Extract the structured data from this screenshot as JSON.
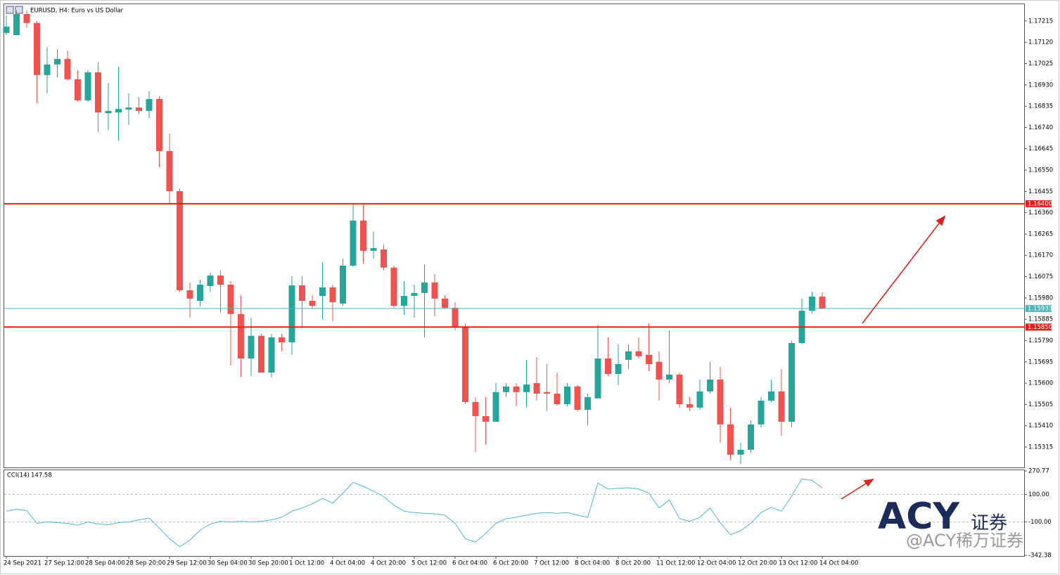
{
  "chart_data": [
    {
      "type": "candlestick",
      "title": "EURUSD, H4:  Euro vs US Dollar",
      "categories": [
        "24 Sep 2021",
        null,
        null,
        null,
        "27 Sep 12:00",
        null,
        null,
        null,
        "28 Sep 04:00",
        null,
        null,
        null,
        "28 Sep 20:00",
        null,
        null,
        null,
        "29 Sep 12:00",
        null,
        null,
        null,
        "30 Sep 04:00",
        null,
        null,
        null,
        "30 Sep 20:00",
        null,
        null,
        null,
        "1 Oct 12:00",
        null,
        null,
        null,
        "4 Oct 04:00",
        null,
        null,
        null,
        "4 Oct 20:00",
        null,
        null,
        null,
        "5 Oct 12:00",
        null,
        null,
        null,
        "6 Oct 04:00",
        null,
        null,
        null,
        "6 Oct 20:00",
        null,
        null,
        null,
        "7 Oct 12:00",
        null,
        null,
        null,
        "8 Oct 04:00",
        null,
        null,
        null,
        "8 Oct 20:00",
        null,
        null,
        null,
        "11 Oct 12:00",
        null,
        null,
        null,
        "12 Oct 04:00",
        null,
        null,
        null,
        "12 Oct 20:00",
        null,
        null,
        null,
        "13 Oct 12:00",
        null,
        null,
        null,
        "14 Oct 04:00"
      ],
      "open": [
        1.17162,
        1.17152,
        1.17246,
        1.17206,
        1.16974,
        1.17021,
        1.17046,
        1.16955,
        1.16861,
        1.16986,
        1.16804,
        1.16807,
        1.1682,
        1.16829,
        1.16814,
        1.16867,
        1.16635,
        1.16456,
        1.16014,
        1.15967,
        1.16033,
        1.1608,
        1.16039,
        1.15908,
        1.1571,
        1.15811,
        1.15647,
        1.15804,
        1.15782,
        1.16036,
        1.15967,
        1.15989,
        1.16027,
        1.15955,
        1.16124,
        1.16325,
        1.1619,
        1.16196,
        1.16115,
        1.15945,
        1.15989,
        1.16002,
        1.16049,
        1.15977,
        1.15936,
        1.15851,
        1.15516,
        1.15453,
        1.15428,
        1.1556,
        1.15585,
        1.1556,
        1.156,
        1.1556,
        1.15553,
        1.15506,
        1.15585,
        1.15481,
        1.15532,
        1.1571,
        1.15641,
        1.15704,
        1.15742,
        1.15726,
        1.15695,
        1.15616,
        1.15638,
        1.15506,
        1.15491,
        1.15563,
        1.15616,
        1.15416,
        1.15281,
        1.15303,
        1.15416,
        1.15522,
        1.15563,
        1.15428,
        1.15779,
        1.15923,
        1.15986
      ],
      "high": [
        1.1724,
        1.17262,
        1.17262,
        1.17215,
        1.17099,
        1.1709,
        1.17083,
        1.16996,
        1.16996,
        1.17033,
        1.16939,
        1.17011,
        1.16892,
        1.16876,
        1.16902,
        1.1688,
        1.16713,
        1.16469,
        1.16049,
        1.16061,
        1.16093,
        1.16102,
        1.16055,
        1.15992,
        1.15892,
        1.1582,
        1.1582,
        1.1582,
        1.16077,
        1.16077,
        1.15992,
        1.1614,
        1.16039,
        1.16155,
        1.164,
        1.164,
        1.16275,
        1.16218,
        1.16124,
        1.16055,
        1.16039,
        1.1613,
        1.16086,
        1.15992,
        1.15961,
        1.15867,
        1.15538,
        1.15538,
        1.156,
        1.156,
        1.156,
        1.15704,
        1.15716,
        1.15685,
        1.15647,
        1.156,
        1.15591,
        1.15553,
        1.15861,
        1.15804,
        1.15773,
        1.15773,
        1.15804,
        1.15867,
        1.15742,
        1.15836,
        1.15647,
        1.15538,
        1.15616,
        1.15695,
        1.15673,
        1.15491,
        1.15334,
        1.15434,
        1.15538,
        1.15616,
        1.15663,
        1.15789,
        1.15977,
        1.16008,
        1.16005
      ],
      "low": [
        1.17152,
        1.17152,
        1.17184,
        1.16848,
        1.16892,
        1.16964,
        1.16949,
        1.16854,
        1.16854,
        1.1672,
        1.16729,
        1.16682,
        1.16751,
        1.16801,
        1.16782,
        1.16563,
        1.164,
        1.16008,
        1.15892,
        1.15942,
        1.16008,
        1.15914,
        1.15679,
        1.15626,
        1.15632,
        1.15647,
        1.15626,
        1.15742,
        1.15726,
        1.15845,
        1.1593,
        1.15883,
        1.15876,
        1.15945,
        1.16118,
        1.16133,
        1.16155,
        1.16102,
        1.15936,
        1.15905,
        1.15892,
        1.15804,
        1.15898,
        1.1593,
        1.15836,
        1.15506,
        1.15293,
        1.15325,
        1.15428,
        1.15538,
        1.15497,
        1.15491,
        1.15522,
        1.15475,
        1.155,
        1.15497,
        1.15475,
        1.15412,
        1.15532,
        1.15632,
        1.15591,
        1.15663,
        1.1571,
        1.15654,
        1.15522,
        1.156,
        1.15491,
        1.15475,
        1.15481,
        1.15553,
        1.15334,
        1.15256,
        1.1524,
        1.15287,
        1.15403,
        1.15516,
        1.15365,
        1.15403,
        1.15773,
        1.15911,
        1.1593
      ],
      "close": [
        1.1719,
        1.17246,
        1.17206,
        1.16974,
        1.17021,
        1.17046,
        1.16955,
        1.16861,
        1.16986,
        1.16807,
        1.16814,
        1.16823,
        1.16829,
        1.16814,
        1.16867,
        1.16635,
        1.16456,
        1.16014,
        1.15977,
        1.16039,
        1.1608,
        1.16039,
        1.15908,
        1.1571,
        1.15811,
        1.15647,
        1.15804,
        1.15782,
        1.16036,
        1.15967,
        1.15945,
        1.16027,
        1.15961,
        1.16124,
        1.16325,
        1.1619,
        1.16202,
        1.16115,
        1.15945,
        1.15989,
        1.16002,
        1.16049,
        1.15977,
        1.15936,
        1.15851,
        1.15516,
        1.15453,
        1.15428,
        1.1556,
        1.15585,
        1.1556,
        1.15594,
        1.15553,
        1.15553,
        1.15506,
        1.15585,
        1.15481,
        1.15538,
        1.1571,
        1.15641,
        1.15685,
        1.15742,
        1.1572,
        1.15685,
        1.15616,
        1.15638,
        1.15506,
        1.15491,
        1.15563,
        1.15616,
        1.15416,
        1.15281,
        1.15303,
        1.15416,
        1.15522,
        1.15563,
        1.15428,
        1.15779,
        1.15923,
        1.15986,
        1.15933
      ],
      "up_color": "#26a69a",
      "down_color": "#ef5350",
      "ylim": [
        1.15224,
        1.17293
      ],
      "yticks": [
        1.17215,
        1.1712,
        1.17025,
        1.1693,
        1.16835,
        1.1674,
        1.16645,
        1.1655,
        1.16455,
        1.1636,
        1.16265,
        1.1617,
        1.16075,
        1.1598,
        1.15885,
        1.1579,
        1.15695,
        1.156,
        1.15505,
        1.1541,
        1.15315
      ],
      "ytick_labels": [
        "1.17215",
        "1.17120",
        "1.17025",
        "1.16930",
        "1.16835",
        "1.16740",
        "1.16645",
        "1.16550",
        "1.16455",
        "1.16360",
        "1.16265",
        "1.16170",
        "1.16075",
        "1.15980",
        "1.15885",
        "1.15790",
        "1.15695",
        "1.15600",
        "1.15505",
        "1.15410",
        "1.15315"
      ],
      "lines": [
        {
          "value": 1.164,
          "label": "1.16400",
          "color": "#e0201b"
        },
        {
          "value": 1.15933,
          "label": "1.15933",
          "color": "#4fb3b8"
        },
        {
          "value": 1.1585,
          "label": "1.15850",
          "color": "#e0201b"
        }
      ]
    },
    {
      "type": "line",
      "name": "CCI(14)",
      "color": "#4fb7d6",
      "values": [
        -22,
        -7,
        -17,
        -110,
        -100,
        -105,
        -110,
        -124,
        -100,
        -115,
        -120,
        -105,
        -100,
        -85,
        -71,
        -144,
        -222,
        -280,
        -232,
        -159,
        -115,
        -95,
        -100,
        -95,
        -100,
        -95,
        -85,
        -66,
        -22,
        2,
        32,
        71,
        37,
        110,
        188,
        159,
        124,
        85,
        22,
        -22,
        -32,
        -37,
        -41,
        -51,
        -110,
        -222,
        -246,
        -183,
        -110,
        -76,
        -66,
        -51,
        -37,
        -32,
        -37,
        -32,
        -51,
        -66,
        183,
        139,
        144,
        149,
        139,
        110,
        2,
        61,
        -76,
        -95,
        -66,
        2,
        -105,
        -193,
        -163,
        -110,
        -32,
        7,
        -22,
        90,
        212,
        202,
        147.58
      ],
      "ylim": [
        -342.38,
        270.77
      ],
      "yticks": [
        270.77,
        {
          "value": 100,
          "label": "100.00"
        },
        {
          "value": -100,
          "label": "-100.00"
        },
        -342.38
      ]
    }
  ],
  "watermark": {
    "brand": "ACY",
    "brand_cn": "证券",
    "handle": "@ACY稀万证券"
  }
}
